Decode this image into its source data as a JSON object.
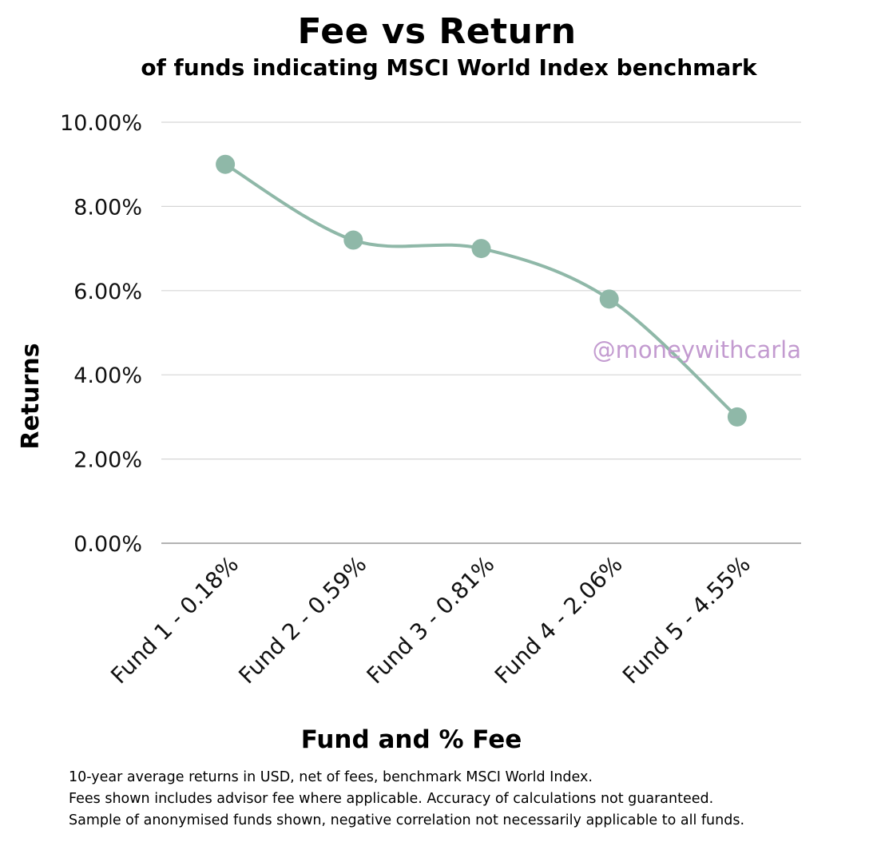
{
  "chart_data": {
    "type": "line",
    "title": "Fee vs Return",
    "subtitle": "of funds indicating MSCI World Index benchmark",
    "xlabel": "Fund and % Fee",
    "ylabel": "Returns",
    "categories": [
      "Fund 1 - 0.18%",
      "Fund 2 - 0.59%",
      "Fund 3 - 0.81%",
      "Fund 4 - 2.06%",
      "Fund 5 - 4.55%"
    ],
    "series": [
      {
        "values": [
          9.0,
          7.2,
          7.0,
          5.8,
          3.0
        ]
      }
    ],
    "ylim": [
      0,
      10
    ],
    "yticks": [
      "0.00%",
      "2.00%",
      "4.00%",
      "6.00%",
      "8.00%",
      "10.00%"
    ],
    "ytick_values": [
      0,
      2,
      4,
      6,
      8,
      10
    ],
    "grid": true,
    "line_color": "#8fb8a8",
    "smooth": true
  },
  "watermark": "@moneywithcarla",
  "notes": [
    "10-year average returns in USD, net of fees, benchmark MSCI World Index.",
    "Fees shown includes advisor fee where applicable. Accuracy of calculations not guaranteed.",
    "Sample of anonymised funds shown, negative correlation not necessarily applicable to all funds."
  ]
}
